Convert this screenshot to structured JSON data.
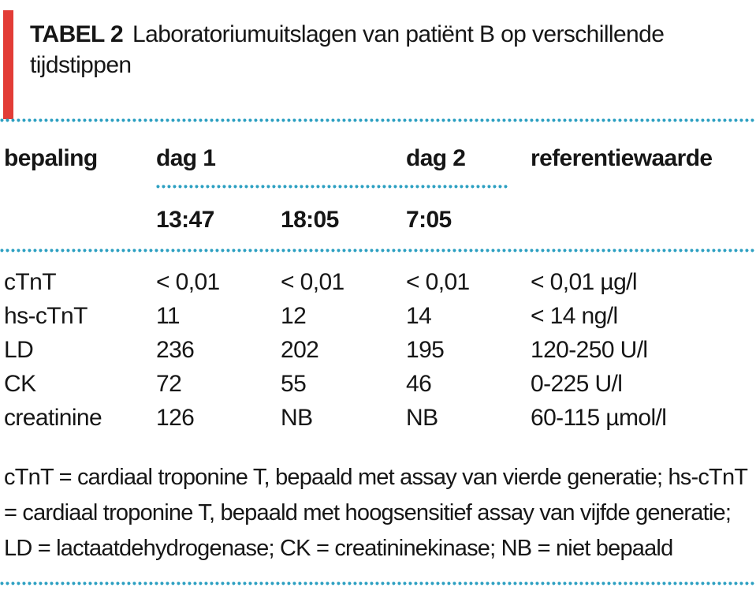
{
  "title": {
    "label": "TABEL 2",
    "text": "Laboratoriumuitslagen van patiënt B op verschillende tijdstippen"
  },
  "table": {
    "header": {
      "col1": "bepaling",
      "col2": "dag 1",
      "col4": "dag 2",
      "col5": "referentiewaarde"
    },
    "times": {
      "t1": "13:47",
      "t2": "18:05",
      "t3": "7:05"
    },
    "rows": [
      {
        "label": "cTnT",
        "values": [
          "< 0,01",
          "< 0,01",
          "< 0,01"
        ],
        "reference": "< 0,01 µg/l"
      },
      {
        "label": "hs-cTnT",
        "values": [
          "11",
          "12",
          "14"
        ],
        "reference": "< 14 ng/l"
      },
      {
        "label": "LD",
        "values": [
          "236",
          "202",
          "195"
        ],
        "reference": "120-250 U/l"
      },
      {
        "label": "CK",
        "values": [
          "72",
          "55",
          "46"
        ],
        "reference": "0-225 U/l"
      },
      {
        "label": "creatinine",
        "values": [
          "126",
          "NB",
          "NB"
        ],
        "reference": "60-115 µmol/l"
      }
    ]
  },
  "footnote": "cTnT = cardiaal troponine T, bepaald met assay van vierde generatie; hs-cTnT = cardiaal troponine T, bepaald met hoogsensitief assay van vijfde generatie; LD = lactaatdehydrogenase; CK = creatininekinase; NB = niet bepaald",
  "colors": {
    "accent_red": "#e23c36",
    "dot_teal": "#2b9fc1",
    "text": "#161616"
  }
}
